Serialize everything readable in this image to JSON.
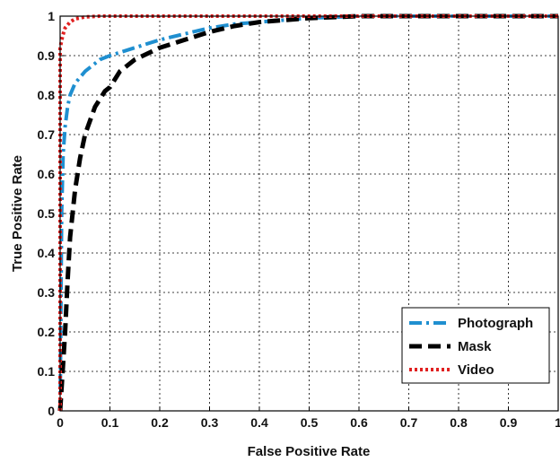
{
  "chart_data": {
    "type": "line",
    "title": "",
    "xlabel": "False Positive Rate",
    "ylabel": "True Positive Rate",
    "xlim": [
      0,
      1
    ],
    "ylim": [
      0,
      1
    ],
    "x_ticks": [
      0,
      0.1,
      0.2,
      0.3,
      0.4,
      0.5,
      0.6,
      0.7,
      0.8,
      0.9,
      1
    ],
    "x_tick_labels": [
      "0",
      "0.1",
      "0.2",
      "0.3",
      "0.4",
      "0.5",
      "0.6",
      "0.7",
      "0.8",
      "0.9",
      "1"
    ],
    "y_ticks": [
      0,
      0.1,
      0.2,
      0.3,
      0.4,
      0.5,
      0.6,
      0.7,
      0.8,
      0.9,
      1
    ],
    "y_tick_labels": [
      "0",
      "0.1",
      "0.2",
      "0.3",
      "0.4",
      "0.5",
      "0.6",
      "0.7",
      "0.8",
      "0.9",
      "1"
    ],
    "grid": true,
    "legend_position": "bottom-right",
    "series": [
      {
        "name": "Photograph",
        "color": "#1f8fd0",
        "dash": "dash-dot",
        "points": [
          [
            0,
            0
          ],
          [
            0.003,
            0.5
          ],
          [
            0.006,
            0.65
          ],
          [
            0.01,
            0.72
          ],
          [
            0.015,
            0.77
          ],
          [
            0.02,
            0.8
          ],
          [
            0.03,
            0.83
          ],
          [
            0.05,
            0.86
          ],
          [
            0.08,
            0.89
          ],
          [
            0.1,
            0.9
          ],
          [
            0.15,
            0.92
          ],
          [
            0.2,
            0.94
          ],
          [
            0.25,
            0.955
          ],
          [
            0.3,
            0.97
          ],
          [
            0.35,
            0.98
          ],
          [
            0.4,
            0.985
          ],
          [
            0.5,
            0.995
          ],
          [
            0.6,
            1
          ],
          [
            0.8,
            1
          ],
          [
            1,
            1
          ]
        ]
      },
      {
        "name": "Mask",
        "color": "#000000",
        "dash": "dashed",
        "points": [
          [
            0,
            0
          ],
          [
            0.005,
            0.1
          ],
          [
            0.01,
            0.2
          ],
          [
            0.015,
            0.33
          ],
          [
            0.02,
            0.44
          ],
          [
            0.03,
            0.56
          ],
          [
            0.04,
            0.64
          ],
          [
            0.05,
            0.7
          ],
          [
            0.07,
            0.77
          ],
          [
            0.09,
            0.81
          ],
          [
            0.1,
            0.82
          ],
          [
            0.12,
            0.86
          ],
          [
            0.15,
            0.89
          ],
          [
            0.2,
            0.92
          ],
          [
            0.25,
            0.94
          ],
          [
            0.3,
            0.96
          ],
          [
            0.35,
            0.975
          ],
          [
            0.4,
            0.985
          ],
          [
            0.45,
            0.99
          ],
          [
            0.5,
            0.995
          ],
          [
            0.6,
            1
          ],
          [
            0.8,
            1
          ],
          [
            1,
            1
          ]
        ]
      },
      {
        "name": "Video",
        "color": "#e02020",
        "dash": "dotted",
        "points": [
          [
            0,
            0
          ],
          [
            0,
            0.92
          ],
          [
            0.005,
            0.95
          ],
          [
            0.01,
            0.97
          ],
          [
            0.02,
            0.985
          ],
          [
            0.03,
            0.993
          ],
          [
            0.05,
            0.998
          ],
          [
            0.08,
            1
          ],
          [
            0.2,
            1
          ],
          [
            0.5,
            1
          ],
          [
            1,
            1
          ]
        ]
      }
    ]
  }
}
